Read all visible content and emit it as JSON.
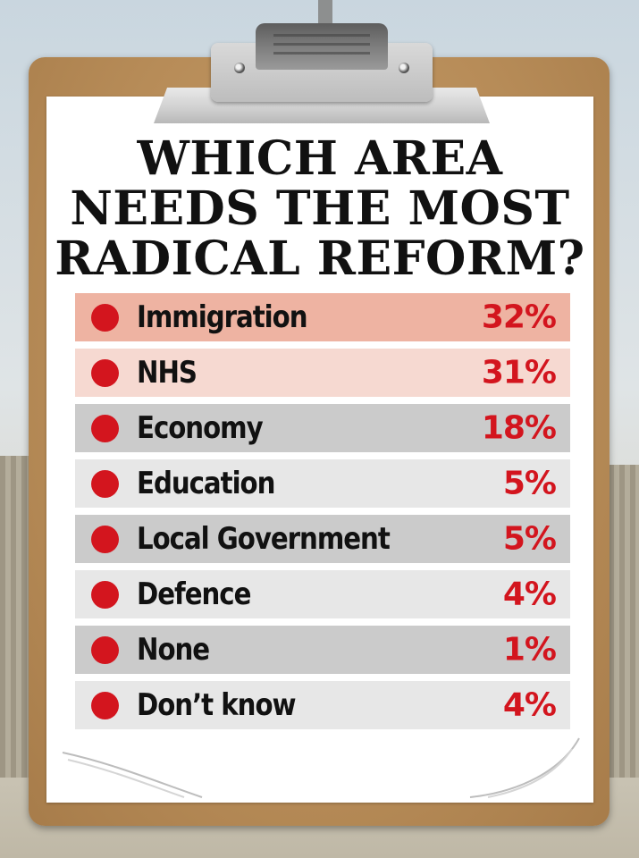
{
  "chart_data": {
    "type": "table",
    "title": "WHICH AREA NEEDS THE MOST RADICAL REFORM?",
    "categories": [
      "Immigration",
      "NHS",
      "Economy",
      "Education",
      "Local Government",
      "Defence",
      "None",
      "Don’t know"
    ],
    "values": [
      32,
      31,
      18,
      5,
      5,
      4,
      1,
      4
    ],
    "value_labels": [
      "32%",
      "31%",
      "18%",
      "5%",
      "5%",
      "4%",
      "1%",
      "4%"
    ],
    "unit": "%"
  },
  "title_lines": [
    "WHICH AREA",
    "NEEDS THE MOST",
    "RADICAL REFORM?"
  ],
  "rows": [
    {
      "label": "Immigration",
      "value": "32%"
    },
    {
      "label": "NHS",
      "value": "31%"
    },
    {
      "label": "Economy",
      "value": "18%"
    },
    {
      "label": "Education",
      "value": "5%"
    },
    {
      "label": "Local Government",
      "value": "5%"
    },
    {
      "label": "Defence",
      "value": "4%"
    },
    {
      "label": "None",
      "value": "1%"
    },
    {
      "label": "Don’t know",
      "value": "4%"
    }
  ],
  "colors": {
    "accent_red": "#d3151e",
    "row_top1": "#eeb3a2",
    "row_top2": "#f6d9d1",
    "row_grey_dark": "#cbcbcb",
    "row_grey_light": "#e7e7e7",
    "board": "#b78c58"
  },
  "icons": {
    "bullet": "red-dot-icon",
    "clip": "clipboard-clip-icon"
  }
}
